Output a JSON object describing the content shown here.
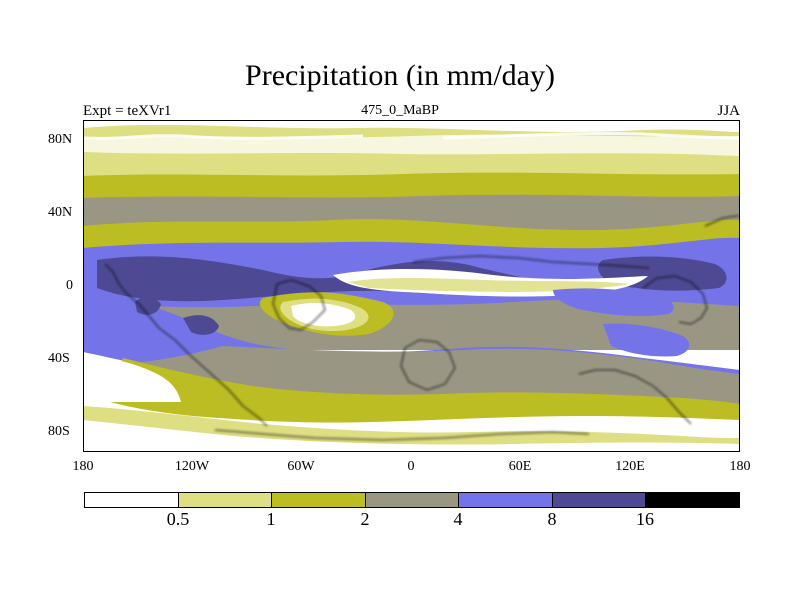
{
  "title": "Precipitation (in mm/day)",
  "left_label": "Expt = teXVr1",
  "center_label": "475_0_MaBP",
  "right_label": "JJA",
  "x_ticks": [
    "180",
    "120W",
    "60W",
    "0",
    "60E",
    "120E",
    "180"
  ],
  "y_ticks": [
    "80N",
    "40N",
    "0",
    "40S",
    "80S"
  ],
  "legend": {
    "labels": [
      "0.5",
      "1",
      "2",
      "4",
      "8",
      "16"
    ],
    "colors": [
      "#ffffff",
      "#dede82",
      "#bcbc23",
      "#999784",
      "#7474e8",
      "#4d4a93",
      "#000000"
    ]
  },
  "map_colors": {
    "light": "#dede82",
    "olive": "#bcbc23",
    "gray": "#999784",
    "blue": "#7474e8",
    "navy": "#4d4a93",
    "white": "#ffffff"
  }
}
